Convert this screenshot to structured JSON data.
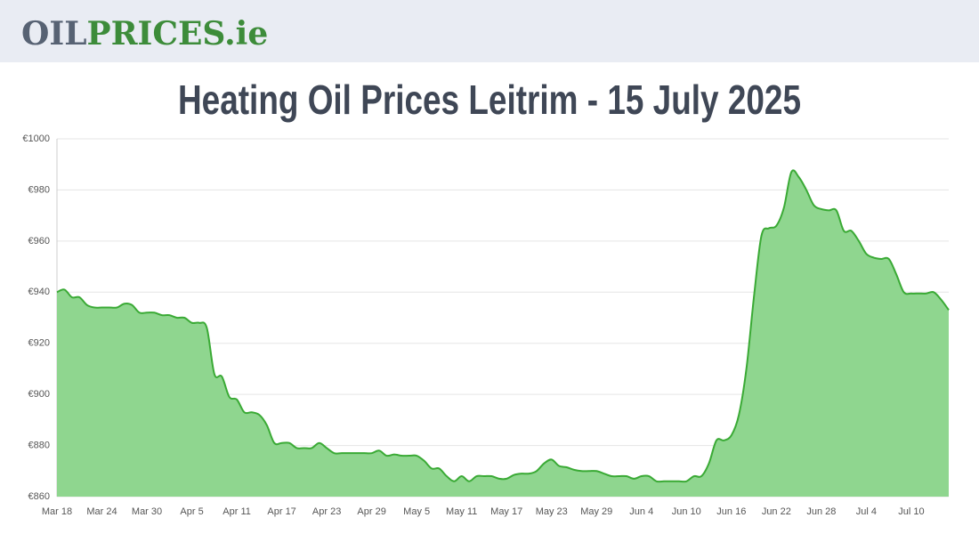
{
  "header": {
    "logo_left": "OIL",
    "logo_right": "PRICES.ie"
  },
  "chart_data": {
    "type": "area",
    "title": "Heating Oil Prices Leitrim - 15 July 2025",
    "categories": [
      "Mar 18",
      null,
      null,
      null,
      null,
      null,
      "Mar 24",
      null,
      null,
      null,
      null,
      null,
      "Mar 30",
      null,
      null,
      null,
      null,
      null,
      "Apr 5",
      null,
      null,
      null,
      null,
      null,
      "Apr 11",
      null,
      null,
      null,
      null,
      null,
      "Apr 17",
      null,
      null,
      null,
      null,
      null,
      "Apr 23",
      null,
      null,
      null,
      null,
      null,
      "Apr 29",
      null,
      null,
      null,
      null,
      null,
      "May 5",
      null,
      null,
      null,
      null,
      null,
      "May 11",
      null,
      null,
      null,
      null,
      null,
      "May 17",
      null,
      null,
      null,
      null,
      null,
      "May 23",
      null,
      null,
      null,
      null,
      null,
      "May 29",
      null,
      null,
      null,
      null,
      null,
      "Jun 4",
      null,
      null,
      null,
      null,
      null,
      "Jun 10",
      null,
      null,
      null,
      null,
      null,
      "Jun 16",
      null,
      null,
      null,
      null,
      null,
      "Jun 22",
      null,
      null,
      null,
      null,
      null,
      "Jun 28",
      null,
      null,
      null,
      null,
      null,
      "Jul 4",
      null,
      null,
      null,
      null,
      null,
      "Jul 10",
      null,
      null,
      null,
      null,
      null
    ],
    "values": [
      940,
      941,
      938,
      938,
      935,
      934,
      934,
      934,
      934,
      935.5,
      935,
      932,
      932,
      932,
      931,
      931,
      930,
      930,
      928,
      928,
      926,
      908,
      907,
      899,
      898,
      893,
      893,
      892,
      888,
      881,
      881,
      881,
      879,
      879,
      879,
      881,
      879,
      877,
      877,
      877,
      877,
      877,
      877,
      878,
      876,
      876.5,
      876,
      876,
      876,
      874,
      871,
      871,
      868,
      866,
      868,
      866,
      868,
      868,
      868,
      867,
      867,
      868.5,
      869,
      869,
      870,
      873,
      874.5,
      872,
      871.5,
      870.5,
      870,
      870,
      870,
      869,
      868,
      868,
      868,
      867,
      868,
      868,
      866,
      866,
      866,
      866,
      866,
      868,
      868,
      873,
      882,
      882,
      884,
      892,
      910,
      938,
      962,
      965,
      966,
      973,
      987,
      985,
      980,
      974,
      972.5,
      972,
      972,
      964,
      964,
      960,
      955,
      953.5,
      953,
      953,
      947,
      940,
      939.5,
      939.5,
      939.5,
      940,
      937,
      933
    ],
    "color": "#3aaa35",
    "fill": "#8fd68f",
    "ylim": [
      860,
      1000
    ],
    "yticks": [
      {
        "value": 860,
        "label": "€860"
      },
      {
        "value": 880,
        "label": "€880"
      },
      {
        "value": 900,
        "label": "€900"
      },
      {
        "value": 920,
        "label": "€920"
      },
      {
        "value": 940,
        "label": "€940"
      },
      {
        "value": 960,
        "label": "€960"
      },
      {
        "value": 980,
        "label": "€980"
      },
      {
        "value": 1000,
        "label": "€1000"
      }
    ],
    "grid": true
  }
}
